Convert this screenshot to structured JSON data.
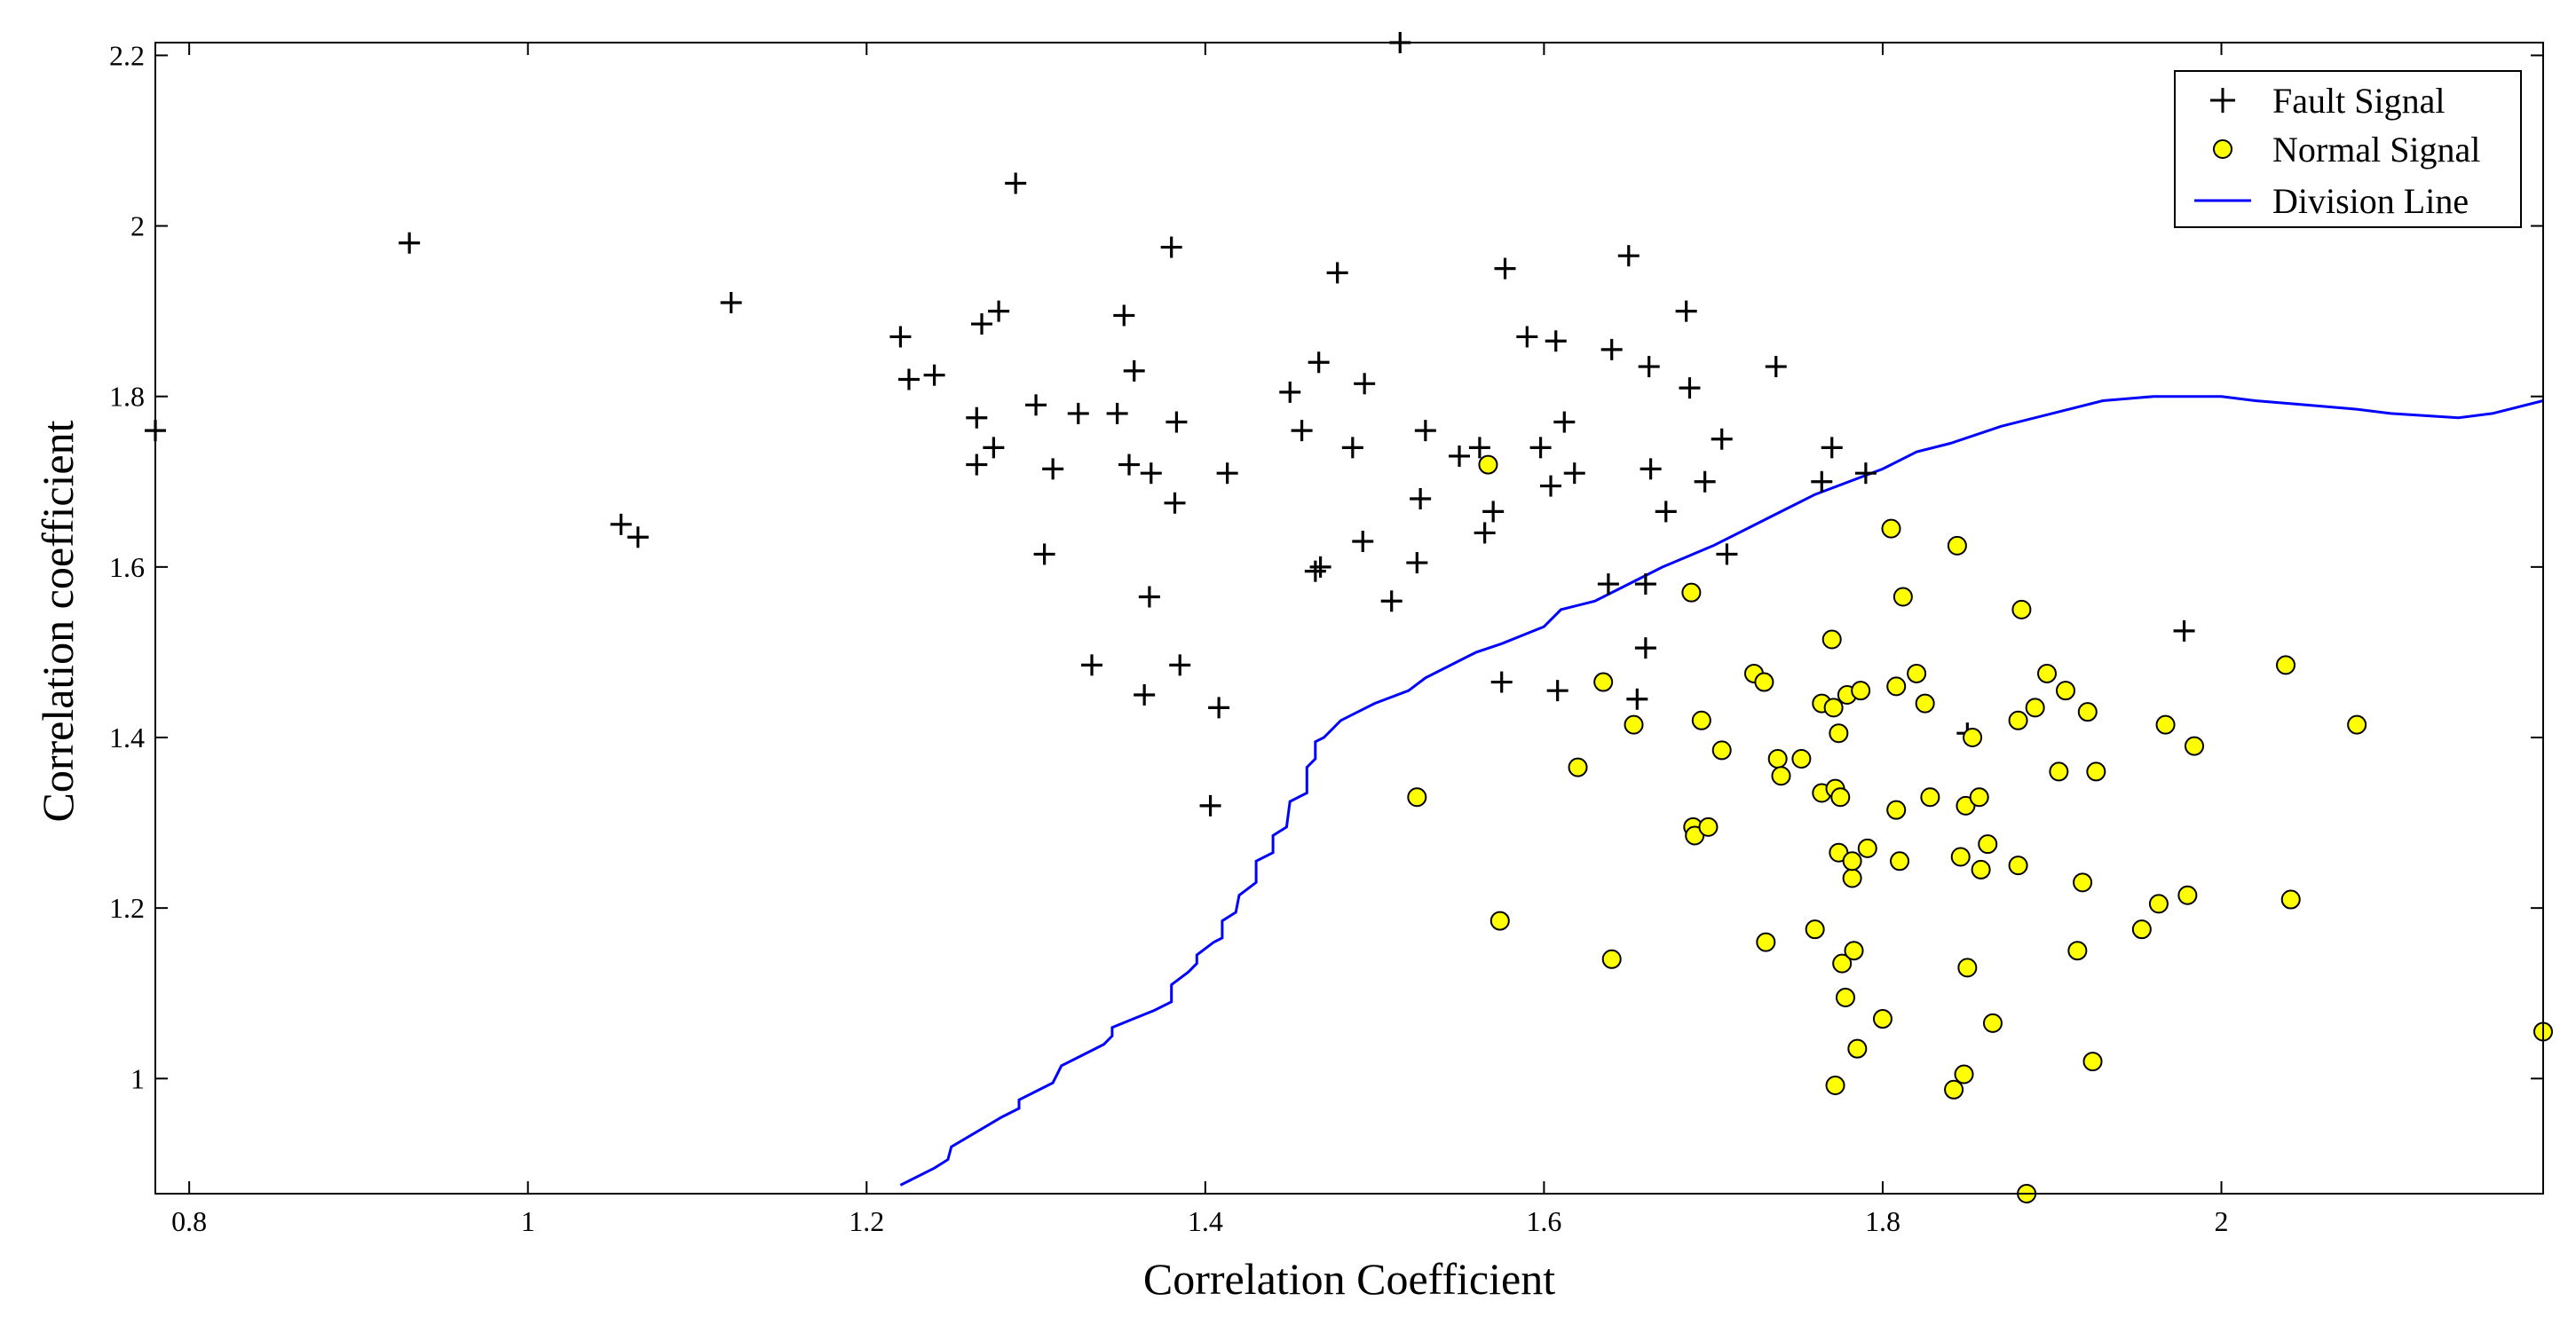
{
  "chart_data": {
    "type": "scatter",
    "xlabel": "Correlation Coefficient",
    "ylabel": "Correlation coefficient",
    "xlim": [
      0.78,
      2.19
    ],
    "ylim": [
      0.865,
      2.215
    ],
    "xticks": [
      0.8,
      1,
      1.2,
      1.4,
      1.6,
      1.8,
      2
    ],
    "xtick_labels": [
      "0.8",
      "1",
      "1.2",
      "1.4",
      "1.6",
      "1.8",
      "2"
    ],
    "yticks": [
      1,
      1.2,
      1.4,
      1.6,
      1.8,
      2,
      2.2
    ],
    "ytick_labels": [
      "1",
      "1.2",
      "1.4",
      "1.6",
      "1.8",
      "2",
      "2.2"
    ],
    "grid": false,
    "legend_position": "top-right",
    "colors": {
      "fault": "#000000",
      "normal_fill": "#ffff00",
      "normal_edge": "#000000",
      "division": "#0000ff"
    },
    "series": [
      {
        "name": "Fault Signal",
        "marker": "plus",
        "points": [
          [
            0.78,
            1.76
          ],
          [
            0.93,
            1.98
          ],
          [
            1.055,
            1.65
          ],
          [
            1.065,
            1.635
          ],
          [
            1.12,
            1.91
          ],
          [
            1.22,
            1.87
          ],
          [
            1.225,
            1.82
          ],
          [
            1.24,
            1.825
          ],
          [
            1.265,
            1.775
          ],
          [
            1.265,
            1.72
          ],
          [
            1.268,
            1.885
          ],
          [
            1.275,
            1.74
          ],
          [
            1.278,
            1.9
          ],
          [
            1.288,
            2.05
          ],
          [
            1.3,
            1.79
          ],
          [
            1.305,
            1.615
          ],
          [
            1.31,
            1.715
          ],
          [
            1.325,
            1.78
          ],
          [
            1.333,
            1.485
          ],
          [
            1.348,
            1.78
          ],
          [
            1.352,
            1.895
          ],
          [
            1.355,
            1.72
          ],
          [
            1.358,
            1.83
          ],
          [
            1.364,
            1.45
          ],
          [
            1.367,
            1.565
          ],
          [
            1.368,
            1.71
          ],
          [
            1.38,
            1.975
          ],
          [
            1.382,
            1.675
          ],
          [
            1.383,
            1.77
          ],
          [
            1.385,
            1.485
          ],
          [
            1.403,
            1.32
          ],
          [
            1.408,
            1.435
          ],
          [
            1.413,
            1.71
          ],
          [
            1.45,
            1.805
          ],
          [
            1.457,
            1.76
          ],
          [
            1.465,
            1.595
          ],
          [
            1.467,
            1.84
          ],
          [
            1.468,
            1.6
          ],
          [
            1.478,
            1.945
          ],
          [
            1.487,
            1.74
          ],
          [
            1.493,
            1.63
          ],
          [
            1.494,
            1.815
          ],
          [
            1.51,
            1.56
          ],
          [
            1.515,
            2.215
          ],
          [
            1.525,
            1.605
          ],
          [
            1.527,
            1.68
          ],
          [
            1.53,
            1.76
          ],
          [
            1.55,
            1.73
          ],
          [
            1.562,
            1.74
          ],
          [
            1.565,
            1.64
          ],
          [
            1.57,
            1.665
          ],
          [
            1.575,
            1.465
          ],
          [
            1.577,
            1.95
          ],
          [
            1.59,
            1.87
          ],
          [
            1.598,
            1.74
          ],
          [
            1.604,
            1.695
          ],
          [
            1.607,
            1.865
          ],
          [
            1.608,
            1.455
          ],
          [
            1.612,
            1.77
          ],
          [
            1.618,
            1.71
          ],
          [
            1.638,
            1.58
          ],
          [
            1.64,
            1.855
          ],
          [
            1.65,
            1.965
          ],
          [
            1.655,
            1.445
          ],
          [
            1.66,
            1.58
          ],
          [
            1.66,
            1.505
          ],
          [
            1.662,
            1.835
          ],
          [
            1.663,
            1.715
          ],
          [
            1.672,
            1.665
          ],
          [
            1.684,
            1.9
          ],
          [
            1.686,
            1.81
          ],
          [
            1.695,
            1.7
          ],
          [
            1.705,
            1.75
          ],
          [
            1.708,
            1.615
          ],
          [
            1.737,
            1.835
          ],
          [
            1.764,
            1.7
          ],
          [
            1.77,
            1.74
          ],
          [
            1.79,
            1.71
          ],
          [
            1.85,
            1.405
          ],
          [
            1.978,
            1.525
          ]
        ]
      },
      {
        "name": "Normal Signal",
        "marker": "circle",
        "points": [
          [
            1.525,
            1.33
          ],
          [
            1.567,
            1.72
          ],
          [
            1.574,
            1.185
          ],
          [
            1.62,
            1.365
          ],
          [
            1.635,
            1.465
          ],
          [
            1.64,
            1.14
          ],
          [
            1.653,
            1.415
          ],
          [
            1.687,
            1.57
          ],
          [
            1.688,
            1.295
          ],
          [
            1.689,
            1.285
          ],
          [
            1.693,
            1.42
          ],
          [
            1.697,
            1.295
          ],
          [
            1.705,
            1.385
          ],
          [
            1.724,
            1.475
          ],
          [
            1.73,
            1.465
          ],
          [
            1.731,
            1.16
          ],
          [
            1.738,
            1.375
          ],
          [
            1.74,
            1.355
          ],
          [
            1.752,
            1.375
          ],
          [
            1.76,
            1.175
          ],
          [
            1.764,
            1.335
          ],
          [
            1.764,
            1.44
          ],
          [
            1.77,
            1.515
          ],
          [
            1.771,
            1.435
          ],
          [
            1.772,
            1.34
          ],
          [
            1.772,
            0.992
          ],
          [
            1.774,
            1.265
          ],
          [
            1.774,
            1.405
          ],
          [
            1.775,
            1.33
          ],
          [
            1.776,
            1.135
          ],
          [
            1.778,
            1.095
          ],
          [
            1.779,
            1.45
          ],
          [
            1.782,
            1.235
          ],
          [
            1.782,
            1.255
          ],
          [
            1.783,
            1.15
          ],
          [
            1.785,
            1.035
          ],
          [
            1.787,
            1.455
          ],
          [
            1.791,
            1.27
          ],
          [
            1.8,
            1.07
          ],
          [
            1.805,
            1.645
          ],
          [
            1.808,
            1.46
          ],
          [
            1.808,
            1.315
          ],
          [
            1.81,
            1.255
          ],
          [
            1.812,
            1.565
          ],
          [
            1.82,
            1.475
          ],
          [
            1.825,
            1.44
          ],
          [
            1.828,
            1.33
          ],
          [
            1.842,
            0.987
          ],
          [
            1.844,
            1.625
          ],
          [
            1.846,
            1.26
          ],
          [
            1.848,
            1.005
          ],
          [
            1.849,
            1.32
          ],
          [
            1.85,
            1.13
          ],
          [
            1.853,
            1.4
          ],
          [
            1.857,
            1.33
          ],
          [
            1.858,
            1.245
          ],
          [
            1.862,
            1.275
          ],
          [
            1.865,
            1.065
          ],
          [
            1.88,
            1.25
          ],
          [
            1.88,
            1.42
          ],
          [
            1.882,
            1.55
          ],
          [
            1.885,
            0.865
          ],
          [
            1.89,
            1.435
          ],
          [
            1.897,
            1.475
          ],
          [
            1.904,
            1.36
          ],
          [
            1.908,
            1.455
          ],
          [
            1.915,
            1.15
          ],
          [
            1.918,
            1.23
          ],
          [
            1.921,
            1.43
          ],
          [
            1.924,
            1.02
          ],
          [
            1.926,
            1.36
          ],
          [
            1.953,
            1.175
          ],
          [
            1.963,
            1.205
          ],
          [
            1.967,
            1.415
          ],
          [
            1.98,
            1.215
          ],
          [
            1.984,
            1.39
          ],
          [
            2.038,
            1.485
          ],
          [
            2.041,
            1.21
          ],
          [
            2.08,
            1.415
          ],
          [
            2.19,
            1.055
          ]
        ]
      },
      {
        "name": "Division Line",
        "marker": "line",
        "points": [
          [
            1.22,
            0.875
          ],
          [
            1.24,
            0.895
          ],
          [
            1.248,
            0.905
          ],
          [
            1.25,
            0.92
          ],
          [
            1.28,
            0.955
          ],
          [
            1.29,
            0.965
          ],
          [
            1.29,
            0.975
          ],
          [
            1.31,
            0.995
          ],
          [
            1.315,
            1.015
          ],
          [
            1.34,
            1.04
          ],
          [
            1.345,
            1.05
          ],
          [
            1.345,
            1.06
          ],
          [
            1.37,
            1.08
          ],
          [
            1.38,
            1.09
          ],
          [
            1.38,
            1.11
          ],
          [
            1.39,
            1.125
          ],
          [
            1.395,
            1.135
          ],
          [
            1.395,
            1.145
          ],
          [
            1.405,
            1.16
          ],
          [
            1.41,
            1.165
          ],
          [
            1.41,
            1.185
          ],
          [
            1.418,
            1.195
          ],
          [
            1.42,
            1.215
          ],
          [
            1.43,
            1.23
          ],
          [
            1.43,
            1.255
          ],
          [
            1.44,
            1.265
          ],
          [
            1.44,
            1.285
          ],
          [
            1.448,
            1.295
          ],
          [
            1.45,
            1.325
          ],
          [
            1.46,
            1.335
          ],
          [
            1.46,
            1.365
          ],
          [
            1.465,
            1.375
          ],
          [
            1.465,
            1.395
          ],
          [
            1.47,
            1.4
          ],
          [
            1.48,
            1.42
          ],
          [
            1.5,
            1.44
          ],
          [
            1.52,
            1.455
          ],
          [
            1.53,
            1.47
          ],
          [
            1.55,
            1.49
          ],
          [
            1.56,
            1.5
          ],
          [
            1.575,
            1.51
          ],
          [
            1.6,
            1.53
          ],
          [
            1.61,
            1.55
          ],
          [
            1.63,
            1.56
          ],
          [
            1.65,
            1.58
          ],
          [
            1.67,
            1.6
          ],
          [
            1.7,
            1.625
          ],
          [
            1.72,
            1.645
          ],
          [
            1.74,
            1.665
          ],
          [
            1.76,
            1.685
          ],
          [
            1.8,
            1.715
          ],
          [
            1.82,
            1.735
          ],
          [
            1.84,
            1.745
          ],
          [
            1.87,
            1.765
          ],
          [
            1.9,
            1.78
          ],
          [
            1.93,
            1.795
          ],
          [
            1.96,
            1.8
          ],
          [
            2.0,
            1.8
          ],
          [
            2.02,
            1.795
          ],
          [
            2.05,
            1.79
          ],
          [
            2.08,
            1.785
          ],
          [
            2.1,
            1.78
          ],
          [
            2.14,
            1.775
          ],
          [
            2.16,
            1.78
          ],
          [
            2.19,
            1.795
          ]
        ]
      }
    ]
  }
}
